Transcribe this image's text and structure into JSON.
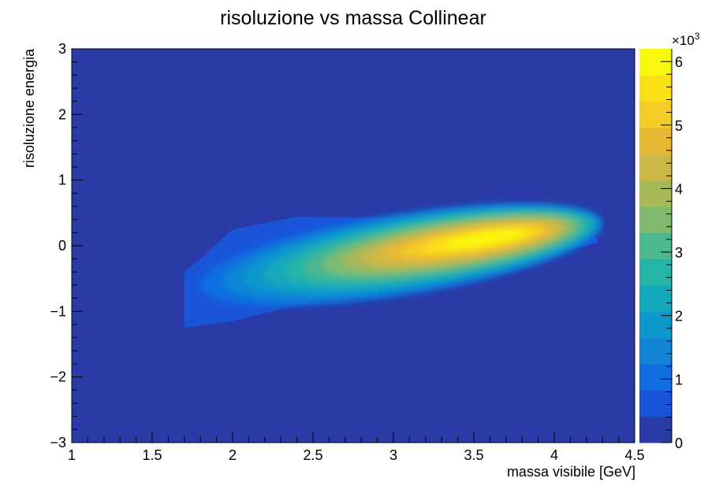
{
  "chart_data": {
    "type": "heatmap",
    "title": "risoluzione vs massa Collinear",
    "xlabel": "massa visibile [GeV]",
    "ylabel": "risoluzione energia",
    "xlim": [
      1,
      4.5
    ],
    "ylim": [
      -3,
      3
    ],
    "x_ticks": [
      "1",
      "1.5",
      "2",
      "2.5",
      "3",
      "3.5",
      "4",
      "4.5"
    ],
    "y_ticks": [
      "−3",
      "−2",
      "−1",
      "0",
      "1",
      "2",
      "3"
    ],
    "colorbar": {
      "range": [
        0,
        6200
      ],
      "multiplier": "×10",
      "multiplier_exponent": "3",
      "tick_values": [
        0,
        1,
        2,
        3,
        4,
        5,
        6
      ],
      "tick_labels": [
        "0",
        "1",
        "2",
        "3",
        "4",
        "5",
        "6"
      ],
      "palette": [
        "#2a3aa6",
        "#1a55d9",
        "#0f6fe0",
        "#1184d6",
        "#0d98cc",
        "#12a9bd",
        "#25b4a8",
        "#4cb890",
        "#7fba6f",
        "#a8b95a",
        "#cdb747",
        "#e8b932",
        "#f6cc28",
        "#fbe018",
        "#f9f70e"
      ]
    },
    "peak": {
      "x": 3.6,
      "y": 0.12,
      "value": 6100
    },
    "band": {
      "x_start": 1.7,
      "x_end": 4.27,
      "upper_edge": [
        [
          1.7,
          -0.4
        ],
        [
          1.8,
          -0.2
        ],
        [
          2.0,
          0.25
        ],
        [
          2.4,
          0.44
        ],
        [
          3.0,
          0.42
        ],
        [
          3.5,
          0.38
        ],
        [
          4.0,
          0.26
        ],
        [
          4.27,
          0.12
        ]
      ],
      "lower_edge": [
        [
          1.7,
          -1.25
        ],
        [
          2.0,
          -1.15
        ],
        [
          2.5,
          -0.85
        ],
        [
          3.0,
          -0.55
        ],
        [
          3.5,
          -0.3
        ],
        [
          4.0,
          -0.1
        ],
        [
          4.27,
          0.04
        ]
      ]
    },
    "background_color": "#2a3aa6"
  }
}
